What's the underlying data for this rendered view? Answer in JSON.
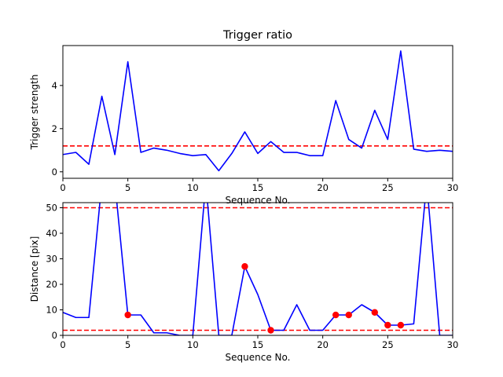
{
  "chart_data": [
    {
      "type": "line",
      "title": "Trigger ratio",
      "xlabel": "Sequence No.",
      "ylabel": "Trigger strength",
      "xlim": [
        0,
        30
      ],
      "ylim": [
        -0.3,
        5.85
      ],
      "xticks": [
        0,
        5,
        10,
        15,
        20,
        25,
        30
      ],
      "yticks": [
        0,
        2,
        4
      ],
      "series": [
        {
          "color": "#0000ff",
          "x": [
            0,
            1,
            2,
            3,
            4,
            5,
            6,
            7,
            8,
            9,
            10,
            11,
            12,
            13,
            14,
            15,
            16,
            17,
            18,
            19,
            20,
            21,
            22,
            23,
            24,
            25,
            26,
            27,
            28,
            29,
            30
          ],
          "values": [
            0.8,
            0.9,
            0.35,
            3.5,
            0.8,
            5.1,
            0.9,
            1.1,
            1.0,
            0.85,
            0.75,
            0.8,
            0.05,
            0.85,
            1.85,
            0.85,
            1.4,
            0.9,
            0.9,
            0.75,
            0.75,
            3.3,
            1.5,
            1.1,
            2.85,
            1.5,
            5.6,
            1.05,
            0.95,
            1.0,
            0.95
          ]
        }
      ],
      "threshold_lines": [
        {
          "y": 1.2,
          "color": "#ff0000",
          "style": "dashed"
        }
      ]
    },
    {
      "type": "line",
      "title": "",
      "xlabel": "Sequence No.",
      "ylabel": "Distance [pix]",
      "xlim": [
        0,
        30
      ],
      "ylim": [
        0,
        52
      ],
      "xticks": [
        0,
        5,
        10,
        15,
        20,
        25,
        30
      ],
      "yticks": [
        0,
        10,
        20,
        30,
        40,
        50
      ],
      "series": [
        {
          "color": "#0000ff",
          "x": [
            0,
            1,
            2,
            3,
            4,
            5,
            6,
            7,
            8,
            9,
            10,
            11,
            12,
            13,
            14,
            15,
            16,
            17,
            18,
            19,
            20,
            21,
            22,
            23,
            24,
            25,
            26,
            27,
            28,
            29,
            30
          ],
          "values": [
            9,
            7,
            7,
            60,
            60,
            8,
            8,
            1,
            1,
            0,
            0,
            60,
            0,
            0,
            27,
            16,
            2,
            2,
            12,
            2,
            2,
            8,
            8,
            12,
            9,
            4,
            4,
            4.5,
            60,
            0,
            0
          ]
        }
      ],
      "markers": {
        "color": "#ff0000",
        "x": [
          5,
          14,
          16,
          21,
          22,
          24,
          25,
          26
        ],
        "y": [
          8,
          27,
          2,
          8,
          8,
          9,
          4,
          4
        ]
      },
      "threshold_lines": [
        {
          "y": 50,
          "color": "#ff0000",
          "style": "dashed"
        },
        {
          "y": 2,
          "color": "#ff0000",
          "style": "dashed"
        }
      ]
    }
  ]
}
